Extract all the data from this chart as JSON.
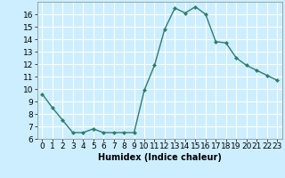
{
  "x": [
    0,
    1,
    2,
    3,
    4,
    5,
    6,
    7,
    8,
    9,
    10,
    11,
    12,
    13,
    14,
    15,
    16,
    17,
    18,
    19,
    20,
    21,
    22,
    23
  ],
  "y": [
    9.6,
    8.5,
    7.5,
    6.5,
    6.5,
    6.8,
    6.5,
    6.5,
    6.5,
    6.5,
    9.9,
    11.9,
    14.8,
    16.5,
    16.1,
    16.6,
    16.0,
    13.8,
    13.7,
    12.5,
    11.9,
    11.5,
    11.1,
    10.7
  ],
  "line_color": "#2e7d6e",
  "marker": "D",
  "marker_size": 2.0,
  "bg_color": "#cceeff",
  "grid_color": "#ffffff",
  "xlabel": "Humidex (Indice chaleur)",
  "xlim": [
    -0.5,
    23.5
  ],
  "ylim": [
    6,
    17
  ],
  "yticks": [
    6,
    7,
    8,
    9,
    10,
    11,
    12,
    13,
    14,
    15,
    16
  ],
  "xticks": [
    0,
    1,
    2,
    3,
    4,
    5,
    6,
    7,
    8,
    9,
    10,
    11,
    12,
    13,
    14,
    15,
    16,
    17,
    18,
    19,
    20,
    21,
    22,
    23
  ],
  "xlabel_fontsize": 7,
  "tick_fontsize": 6.5,
  "line_width": 1.0
}
